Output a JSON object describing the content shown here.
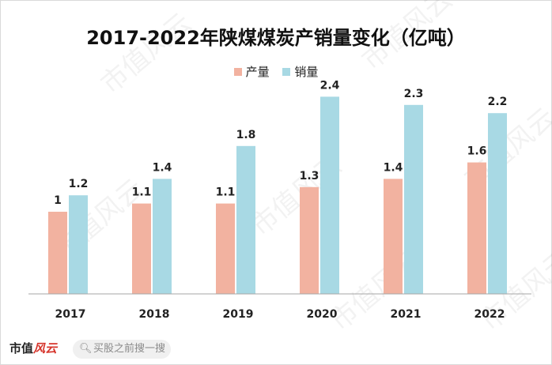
{
  "chart_data": {
    "type": "bar",
    "title": "2017-2022年陕煤煤炭产销量变化（亿吨）",
    "categories": [
      "2017",
      "2018",
      "2019",
      "2020",
      "2021",
      "2022"
    ],
    "series": [
      {
        "name": "产量",
        "values": [
          1.0,
          1.1,
          1.1,
          1.3,
          1.4,
          1.6
        ],
        "labels": [
          "1",
          "1.1",
          "1.1",
          "1.3",
          "1.4",
          "1.6"
        ],
        "color": "#f2b2a0"
      },
      {
        "name": "销量",
        "values": [
          1.2,
          1.4,
          1.8,
          2.4,
          2.3,
          2.2
        ],
        "labels": [
          "1.2",
          "1.4",
          "1.8",
          "2.4",
          "2.3",
          "2.2"
        ],
        "color": "#a8d9e4"
      }
    ],
    "ylim": [
      0,
      2.5
    ],
    "grid": false,
    "legend": "top-center"
  },
  "footer": {
    "brand_main": "市值",
    "brand_accent": "风云",
    "search_placeholder": "买股之前搜一搜",
    "icon": "search-icon"
  },
  "watermark": "市值风云"
}
